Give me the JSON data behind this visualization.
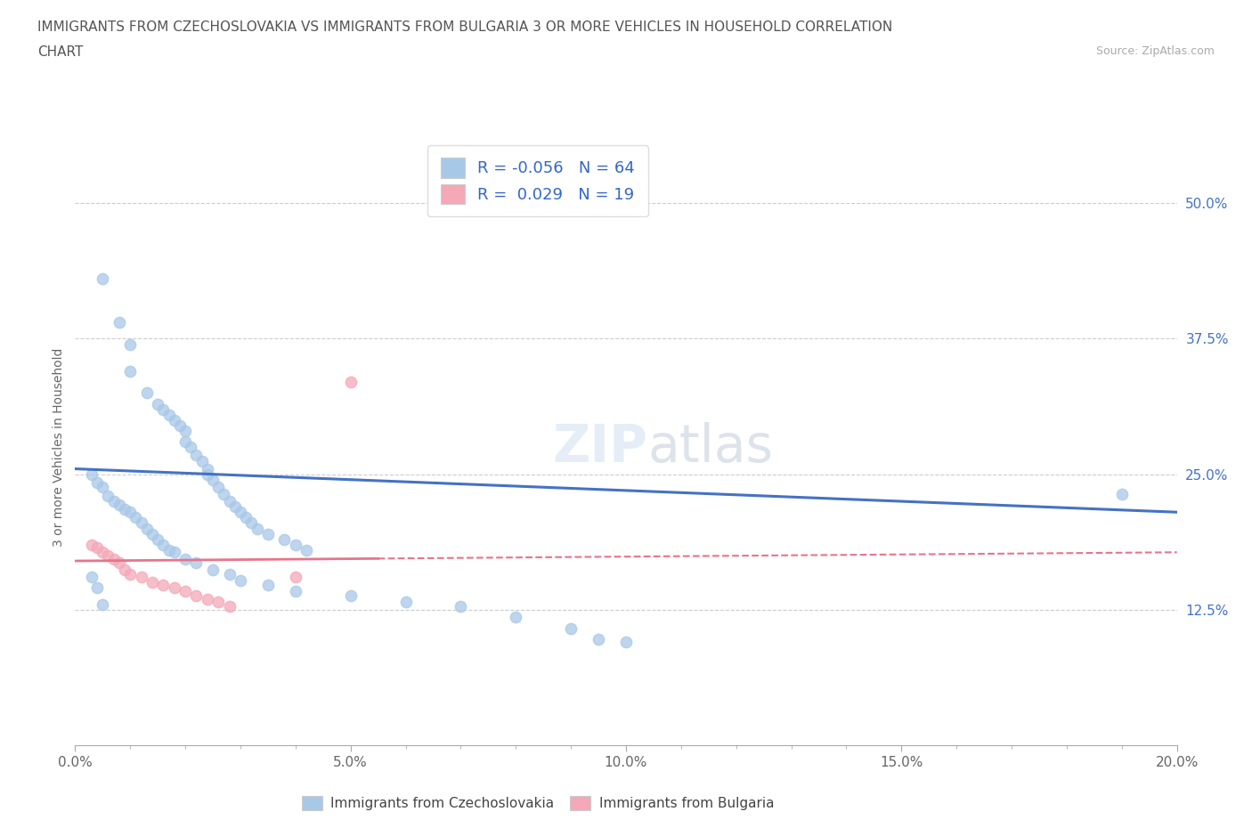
{
  "title_line1": "IMMIGRANTS FROM CZECHOSLOVAKIA VS IMMIGRANTS FROM BULGARIA 3 OR MORE VEHICLES IN HOUSEHOLD CORRELATION",
  "title_line2": "CHART",
  "source_text": "Source: ZipAtlas.com",
  "ylabel": "3 or more Vehicles in Household",
  "xmin": 0.0,
  "xmax": 0.2,
  "ymin": 0.0,
  "ymax": 0.55,
  "xtick_labels": [
    "0.0%",
    "",
    "",
    "",
    "",
    "5.0%",
    "",
    "",
    "",
    "",
    "10.0%",
    "",
    "",
    "",
    "",
    "15.0%",
    "",
    "",
    "",
    "",
    "20.0%"
  ],
  "xtick_values": [
    0.0,
    0.01,
    0.02,
    0.03,
    0.04,
    0.05,
    0.06,
    0.07,
    0.08,
    0.09,
    0.1,
    0.11,
    0.12,
    0.13,
    0.14,
    0.15,
    0.16,
    0.17,
    0.18,
    0.19,
    0.2
  ],
  "xtick_major_labels": [
    "0.0%",
    "5.0%",
    "10.0%",
    "15.0%",
    "20.0%"
  ],
  "xtick_major_values": [
    0.0,
    0.05,
    0.1,
    0.15,
    0.2
  ],
  "ytick_labels": [
    "12.5%",
    "25.0%",
    "37.5%",
    "50.0%"
  ],
  "ytick_values": [
    0.125,
    0.25,
    0.375,
    0.5
  ],
  "hline_values": [
    0.125,
    0.25,
    0.375,
    0.5
  ],
  "legend_label1": "Immigrants from Czechoslovakia",
  "legend_label2": "Immigrants from Bulgaria",
  "R1": "-0.056",
  "N1": "64",
  "R2": "0.029",
  "N2": "19",
  "color1": "#a8c8e8",
  "color2": "#f4a8b8",
  "line_color1": "#4472c4",
  "line_color2": "#e8748a",
  "watermark": "ZIPAtlas",
  "czech_x": [
    0.005,
    0.008,
    0.01,
    0.01,
    0.013,
    0.015,
    0.016,
    0.017,
    0.018,
    0.019,
    0.02,
    0.02,
    0.021,
    0.022,
    0.023,
    0.024,
    0.024,
    0.025,
    0.026,
    0.027,
    0.028,
    0.029,
    0.03,
    0.031,
    0.032,
    0.033,
    0.035,
    0.038,
    0.04,
    0.042,
    0.003,
    0.004,
    0.005,
    0.006,
    0.007,
    0.008,
    0.009,
    0.01,
    0.011,
    0.012,
    0.013,
    0.014,
    0.015,
    0.016,
    0.017,
    0.018,
    0.02,
    0.022,
    0.025,
    0.028,
    0.03,
    0.035,
    0.04,
    0.05,
    0.06,
    0.07,
    0.08,
    0.09,
    0.095,
    0.1,
    0.003,
    0.004,
    0.005,
    0.19
  ],
  "czech_y": [
    0.43,
    0.39,
    0.37,
    0.345,
    0.325,
    0.315,
    0.31,
    0.305,
    0.3,
    0.295,
    0.29,
    0.28,
    0.275,
    0.268,
    0.262,
    0.255,
    0.25,
    0.245,
    0.238,
    0.232,
    0.225,
    0.22,
    0.215,
    0.21,
    0.205,
    0.2,
    0.195,
    0.19,
    0.185,
    0.18,
    0.25,
    0.242,
    0.238,
    0.23,
    0.225,
    0.222,
    0.218,
    0.215,
    0.21,
    0.205,
    0.2,
    0.195,
    0.19,
    0.185,
    0.18,
    0.178,
    0.172,
    0.168,
    0.162,
    0.158,
    0.152,
    0.148,
    0.142,
    0.138,
    0.132,
    0.128,
    0.118,
    0.108,
    0.098,
    0.095,
    0.155,
    0.145,
    0.13,
    0.232
  ],
  "bulg_x": [
    0.003,
    0.004,
    0.005,
    0.006,
    0.007,
    0.008,
    0.009,
    0.01,
    0.012,
    0.014,
    0.016,
    0.018,
    0.02,
    0.022,
    0.024,
    0.026,
    0.028,
    0.04,
    0.05
  ],
  "bulg_y": [
    0.185,
    0.182,
    0.178,
    0.175,
    0.172,
    0.168,
    0.162,
    0.158,
    0.155,
    0.15,
    0.148,
    0.145,
    0.142,
    0.138,
    0.135,
    0.132,
    0.128,
    0.155,
    0.335
  ],
  "trendline1_x": [
    0.0,
    0.2
  ],
  "trendline1_y": [
    0.255,
    0.215
  ],
  "trendline2_x": [
    0.0,
    0.2
  ],
  "trendline2_y": [
    0.17,
    0.178
  ]
}
